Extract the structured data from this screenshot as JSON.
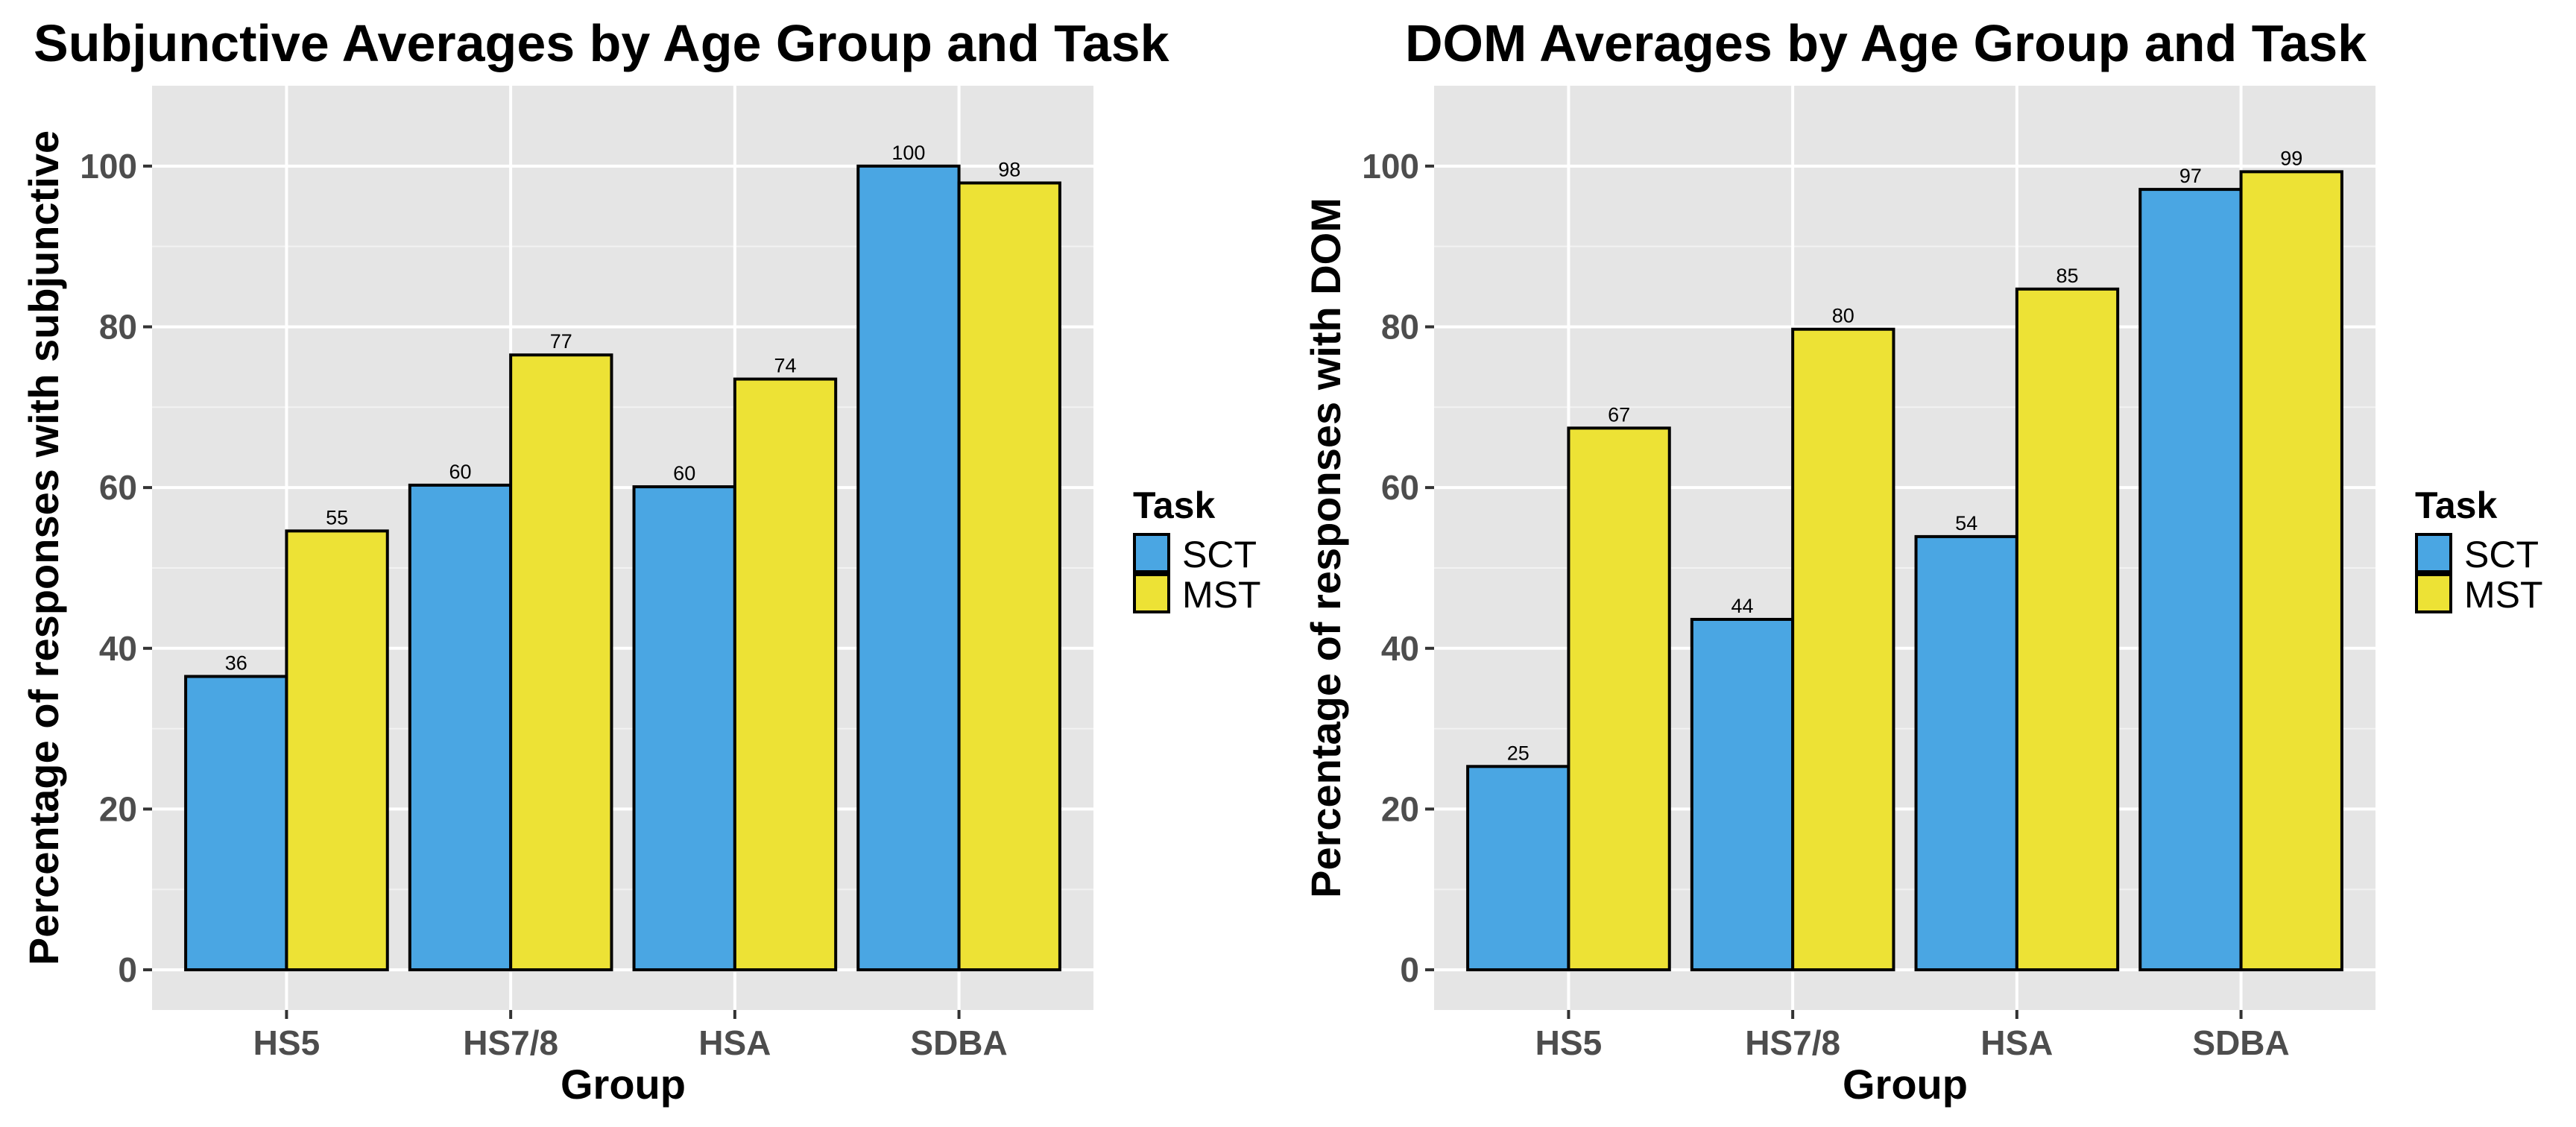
{
  "chart_data": [
    {
      "type": "bar",
      "title": "Subjunctive Averages by Age Group and Task",
      "xlabel": "Group",
      "ylabel": "Percentage of responses with subjunctive",
      "categories": [
        "HS5",
        "HS7/8",
        "HSA",
        "SDBA"
      ],
      "series": [
        {
          "name": "SCT",
          "color": "#4AA6E3",
          "values": [
            36.5,
            60.3,
            60.1,
            100
          ],
          "labels": [
            "36",
            "60",
            "60",
            "100"
          ]
        },
        {
          "name": "MST",
          "color": "#EDE235",
          "values": [
            54.6,
            76.5,
            73.5,
            97.9
          ],
          "labels": [
            "55",
            "77",
            "74",
            "98"
          ]
        }
      ],
      "ylim": [
        -5,
        110
      ],
      "yticks": [
        0,
        20,
        40,
        60,
        80,
        100
      ],
      "grid": true,
      "legend": {
        "title": "Task",
        "position": "right"
      }
    },
    {
      "type": "bar",
      "title": "DOM Averages by Age Group and Task",
      "xlabel": "Group",
      "ylabel": "Percentage of responses with DOM",
      "categories": [
        "HS5",
        "HS7/8",
        "HSA",
        "SDBA"
      ],
      "series": [
        {
          "name": "SCT",
          "color": "#4AA6E3",
          "values": [
            25.3,
            43.6,
            53.9,
            97.1
          ],
          "labels": [
            "25",
            "44",
            "54",
            "97"
          ]
        },
        {
          "name": "MST",
          "color": "#EDE235",
          "values": [
            67.4,
            79.7,
            84.7,
            99.3
          ],
          "labels": [
            "67",
            "80",
            "85",
            "99"
          ]
        }
      ],
      "ylim": [
        -5,
        110
      ],
      "yticks": [
        0,
        20,
        40,
        60,
        80,
        100
      ],
      "grid": true,
      "legend": {
        "title": "Task",
        "position": "right"
      }
    }
  ]
}
